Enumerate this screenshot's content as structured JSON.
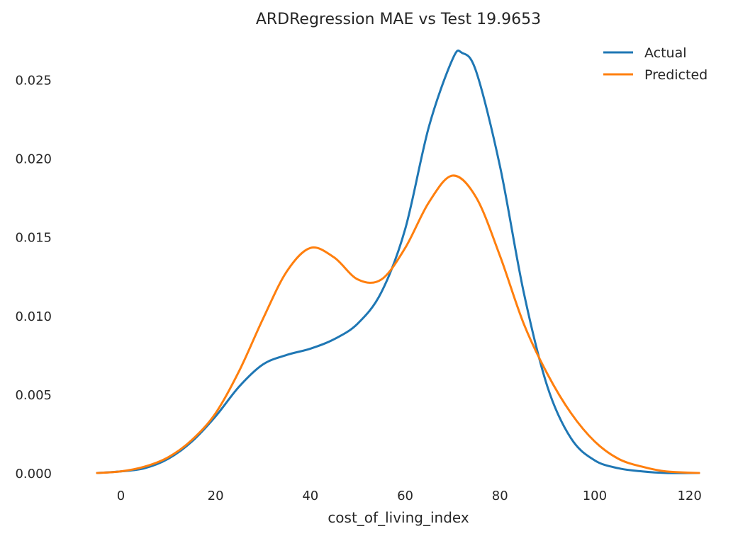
{
  "chart_data": {
    "type": "line",
    "title": "ARDRegression MAE vs Test 19.9653",
    "xlabel": "cost_of_living_index",
    "ylabel": "",
    "xlim": [
      -5,
      122
    ],
    "ylim": [
      0,
      0.027
    ],
    "x_ticks": [
      "0",
      "20",
      "40",
      "60",
      "80",
      "100",
      "120"
    ],
    "y_ticks": [
      "0.000",
      "0.005",
      "0.010",
      "0.015",
      "0.020",
      "0.025"
    ],
    "grid": false,
    "legend_position": "top-right",
    "series": [
      {
        "name": "Actual",
        "color": "#1f77b4",
        "x": [
          -5,
          0,
          5,
          10,
          15,
          20,
          25,
          30,
          35,
          40,
          45,
          50,
          55,
          60,
          65,
          70,
          72,
          75,
          80,
          85,
          90,
          95,
          100,
          105,
          110,
          115,
          122
        ],
        "y": [
          0.0,
          0.0001,
          0.0003,
          0.0009,
          0.002,
          0.0036,
          0.0055,
          0.0069,
          0.0075,
          0.0079,
          0.0085,
          0.0095,
          0.0115,
          0.0155,
          0.022,
          0.0263,
          0.0267,
          0.0255,
          0.0195,
          0.0115,
          0.0055,
          0.0022,
          0.0008,
          0.0003,
          0.0001,
          0.0,
          0.0
        ]
      },
      {
        "name": "Predicted",
        "color": "#ff7f0e",
        "x": [
          -5,
          0,
          5,
          10,
          15,
          20,
          25,
          30,
          35,
          40,
          45,
          50,
          55,
          60,
          65,
          70,
          75,
          80,
          85,
          90,
          95,
          100,
          105,
          110,
          115,
          122
        ],
        "y": [
          0.0,
          0.0001,
          0.0004,
          0.001,
          0.0021,
          0.0038,
          0.0065,
          0.0098,
          0.0128,
          0.0143,
          0.0137,
          0.0123,
          0.0123,
          0.0143,
          0.0172,
          0.0189,
          0.0175,
          0.0138,
          0.0095,
          0.0063,
          0.0038,
          0.002,
          0.0009,
          0.0004,
          0.0001,
          0.0
        ]
      }
    ]
  }
}
